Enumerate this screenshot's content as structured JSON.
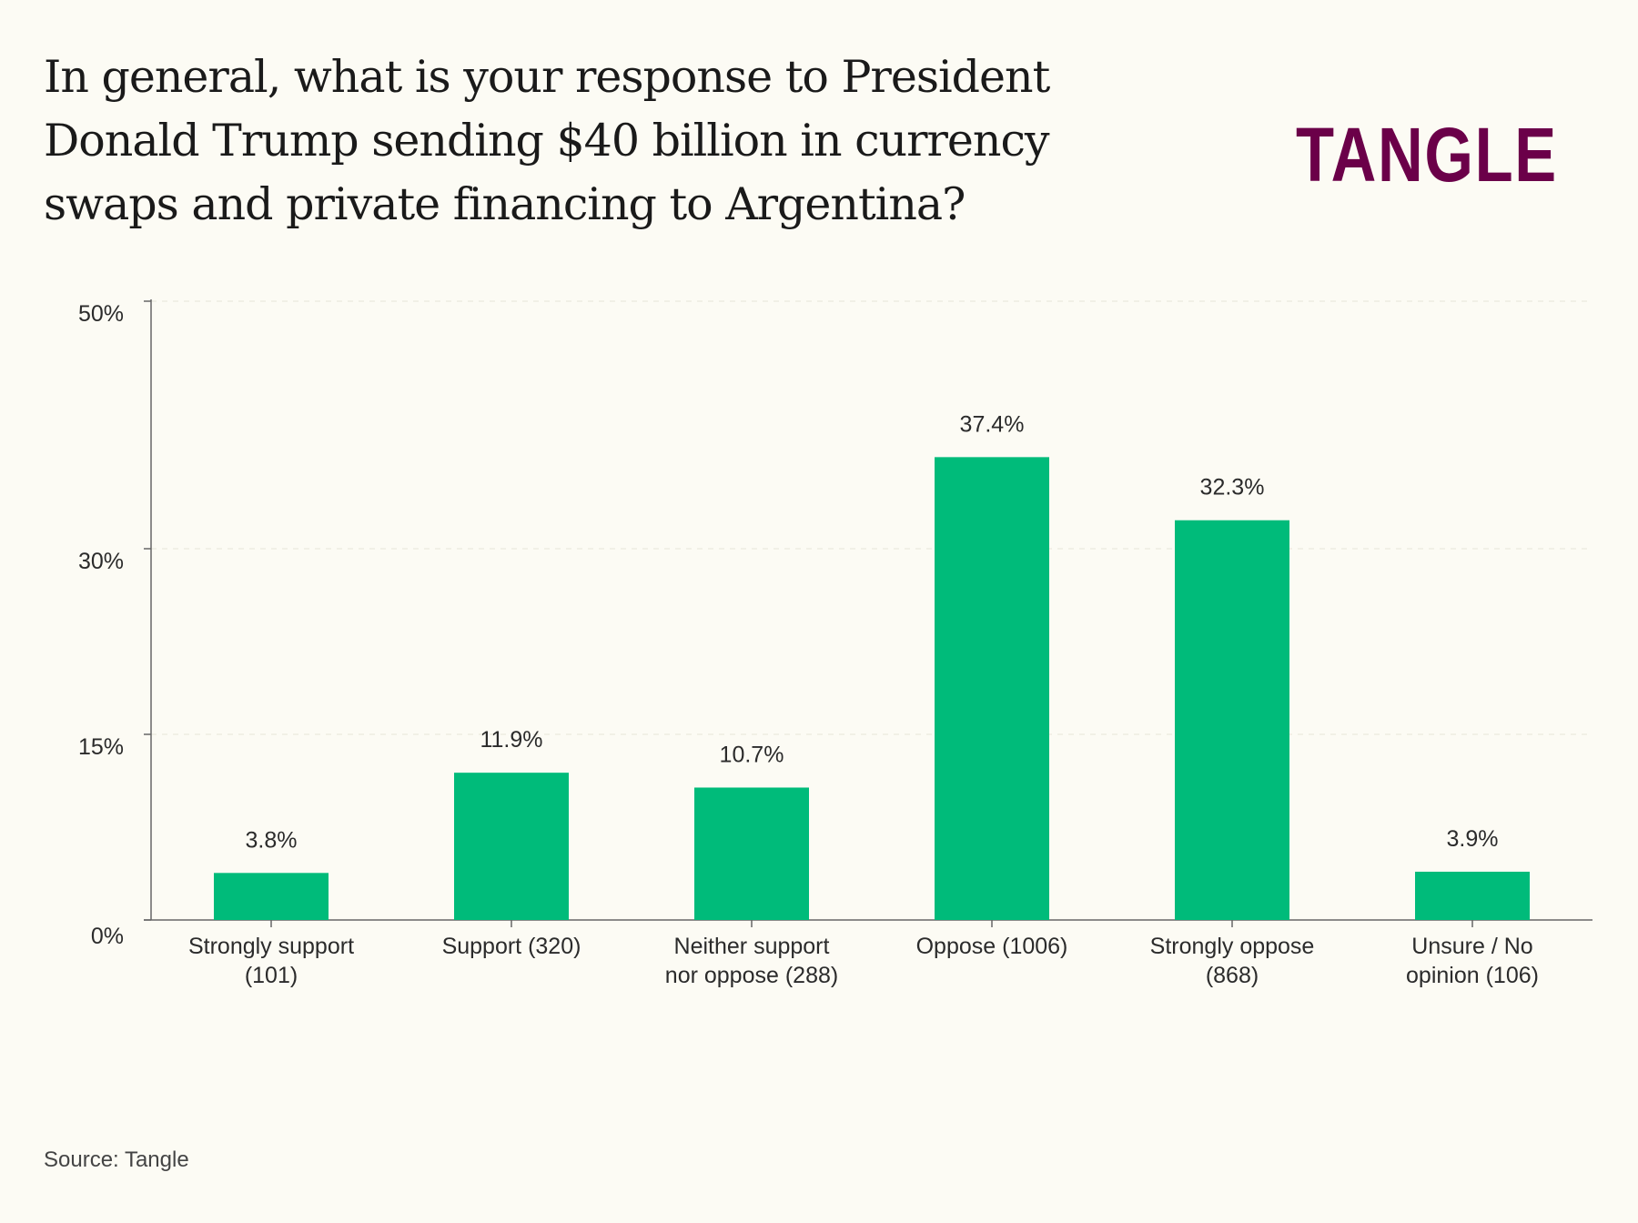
{
  "chart_data": {
    "type": "bar",
    "title": "In general, what is your response to President Donald Trump sending $40 billion in currency swaps and private financing to Argentina?",
    "categories": [
      [
        "Strongly support",
        "(101)"
      ],
      [
        "Support (320)"
      ],
      [
        "Neither support",
        "nor oppose (288)"
      ],
      [
        "Oppose (1006)"
      ],
      [
        "Strongly oppose",
        "(868)"
      ],
      [
        "Unsure / No",
        "opinion (106)"
      ]
    ],
    "values": [
      3.8,
      11.9,
      10.7,
      37.4,
      32.3,
      3.9
    ],
    "value_labels": [
      "3.8%",
      "11.9%",
      "10.7%",
      "37.4%",
      "32.3%",
      "3.9%"
    ],
    "yticks": [
      0,
      15,
      30,
      50
    ],
    "ytick_labels": [
      "0%",
      "15%",
      "30%",
      "50%"
    ],
    "ylim": [
      0,
      50
    ],
    "xlabel": "",
    "ylabel": "",
    "grid": true,
    "bar_color": "#00bb7a"
  },
  "logo": "TANGLE",
  "logo_color": "#6b0049",
  "source": "Source: Tangle"
}
